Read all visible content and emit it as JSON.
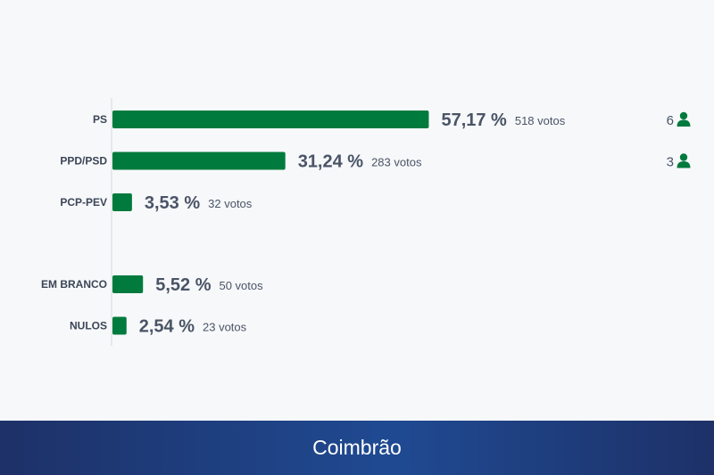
{
  "chart_data": {
    "type": "bar",
    "orientation": "horizontal",
    "title": "",
    "xlabel": "",
    "ylabel": "",
    "bar_color": "#007a3d",
    "groups": [
      {
        "rows": [
          {
            "label": "PS",
            "value": 57.17,
            "value_label": "57,17 %",
            "votes_label": "518 votos",
            "seats": 6
          },
          {
            "label": "PPD/PSD",
            "value": 31.24,
            "value_label": "31,24 %",
            "votes_label": "283 votos",
            "seats": 3
          },
          {
            "label": "PCP-PEV",
            "value": 3.53,
            "value_label": "3,53 %",
            "votes_label": "32 votos"
          }
        ]
      },
      {
        "rows": [
          {
            "label": "EM BRANCO",
            "value": 5.52,
            "value_label": "5,52 %",
            "votes_label": "50 votos"
          },
          {
            "label": "NULOS",
            "value": 2.54,
            "value_label": "2,54 %",
            "votes_label": "23 votos"
          }
        ]
      }
    ]
  },
  "footer": {
    "location": "Coimbrão"
  }
}
